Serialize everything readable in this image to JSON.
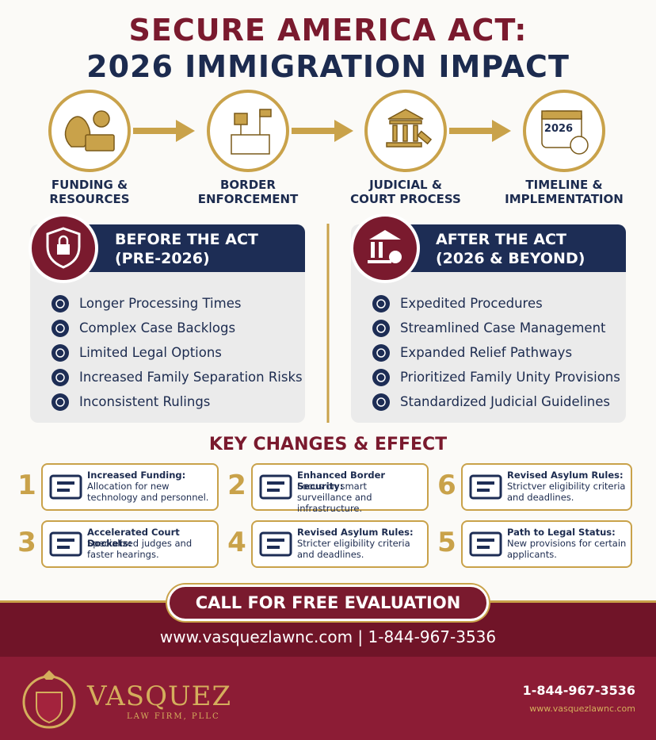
{
  "header": {
    "title_line1": "SECURE AMERICA ACT:",
    "title_line2": "2026 IMMIGRATION IMPACT"
  },
  "steps": [
    {
      "lines": [
        "FUNDING &",
        "RESOURCES"
      ]
    },
    {
      "lines": [
        "BORDER",
        "ENFORCEMENT"
      ]
    },
    {
      "lines": [
        "JUDICIAL &",
        "COURT PROCESS"
      ]
    },
    {
      "lines": [
        "TIMELINE &",
        "IMPLEMENTATION"
      ]
    }
  ],
  "step_icon_year": "2026",
  "before": {
    "title_lines": [
      "BEFORE THE ACT",
      "(PRE-2026)"
    ],
    "items": [
      "Longer Processing Times",
      "Complex Case Backlogs",
      "Limited Legal Options",
      "Increased Family Separation Risks",
      "Inconsistent Rulings"
    ]
  },
  "after": {
    "title_lines": [
      "AFTER THE ACT",
      "(2026 & BEYOND)"
    ],
    "items": [
      "Expedited Procedures",
      "Streamlined Case Management",
      "Expanded Relief Pathways",
      "Prioritized Family Unity Provisions",
      "Standardized Judicial Guidelines"
    ]
  },
  "key_changes": {
    "title": "KEY CHANGES & EFFECT",
    "cards": [
      {
        "number": "1",
        "heading": "Increased Funding:",
        "text": "Allocation for new technology and personnel."
      },
      {
        "number": "2",
        "heading": "Enhanced Border Security:",
        "text": "Focus on smart surveillance and infrastructure."
      },
      {
        "number": "6",
        "heading": "Revised Asylum Rules:",
        "text": "Strictver eligibility criteria and deadlines."
      },
      {
        "number": "3",
        "heading": "Accelerated Court Dockets:",
        "text": "Specialized judges and faster hearings."
      },
      {
        "number": "4",
        "heading": "Revised Asylum Rules:",
        "text": "Stricter eligibility criteria and deadlines."
      },
      {
        "number": "5",
        "heading": "Path to Legal Status:",
        "text": "New provisions for certain applicants."
      }
    ]
  },
  "cta": {
    "button": "CALL FOR FREE EVALUATION",
    "contact": "www.vasquezlawnc.com | 1-844-967-3536"
  },
  "footer": {
    "logo_name": "VASQUEZ",
    "logo_sub": "LAW FIRM, PLLC",
    "phone": "1-844-967-3536",
    "website": "www.vasquezlawnc.com"
  }
}
